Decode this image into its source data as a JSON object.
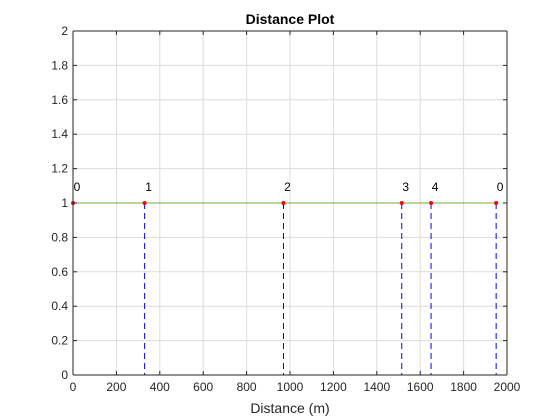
{
  "chart_data": {
    "type": "line",
    "title": "Distance Plot",
    "xlabel": "Distance (m)",
    "ylabel": "",
    "xlim": [
      0,
      2000
    ],
    "ylim": [
      0,
      2
    ],
    "x_ticks": [
      0,
      200,
      400,
      600,
      800,
      1000,
      1200,
      1400,
      1600,
      1800,
      2000
    ],
    "y_ticks": [
      0,
      0.2,
      0.4,
      0.6,
      0.8,
      1,
      1.2,
      1.4,
      1.6,
      1.8,
      2
    ],
    "x_tick_labels": [
      "0",
      "200",
      "400",
      "600",
      "800",
      "1000",
      "1200",
      "1400",
      "1600",
      "1800",
      "2000"
    ],
    "y_tick_labels": [
      "0",
      "0.2",
      "0.4",
      "0.6",
      "0.8",
      "1",
      "1.2",
      "1.4",
      "1.6",
      "1.8",
      "2"
    ],
    "grid": true,
    "series": [
      {
        "x": [
          0,
          330,
          970,
          1515,
          1650,
          1950
        ],
        "y": [
          1,
          1,
          1,
          1,
          1,
          1
        ],
        "labels": [
          "0",
          "1",
          "2",
          "3",
          "4",
          "0"
        ]
      }
    ],
    "colors": {
      "line": "#77AC30",
      "markers": "#FF0000",
      "stems": "#0000FF",
      "grid": "#DCDCDC",
      "axis": "#262626"
    }
  }
}
